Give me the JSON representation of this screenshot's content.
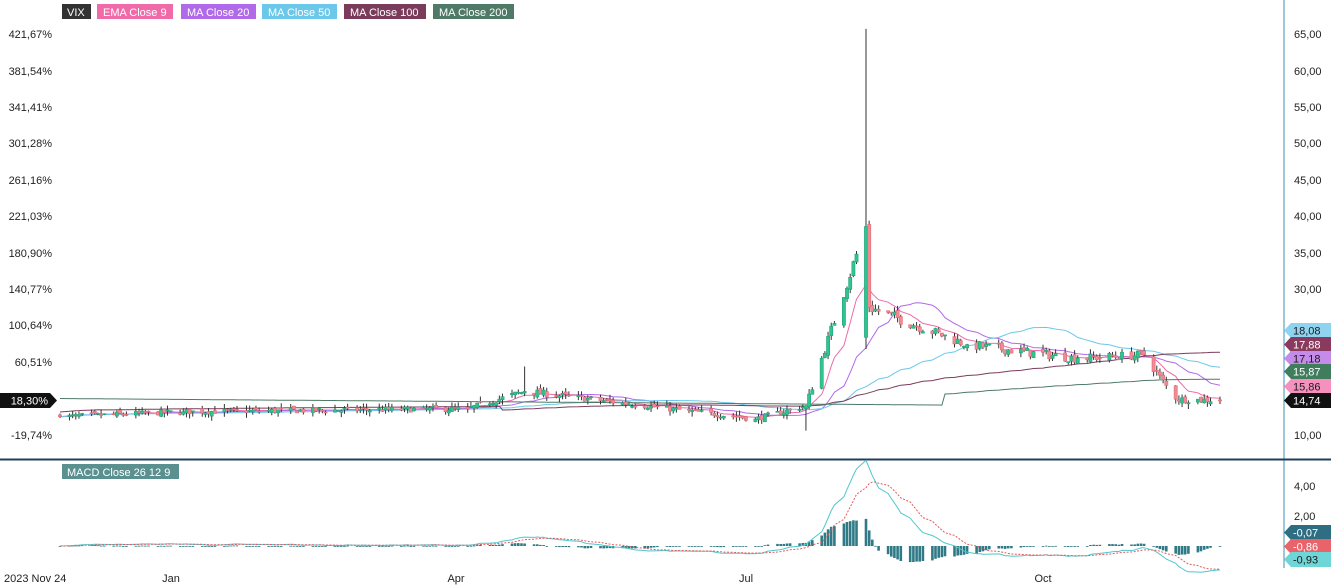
{
  "legend": {
    "main": [
      {
        "label": "VIX",
        "color": "#333333"
      },
      {
        "label": "EMA Close 9",
        "color": "#f06aa8"
      },
      {
        "label": "MA Close 20",
        "color": "#b069e8"
      },
      {
        "label": "MA Close 50",
        "color": "#6cc8ea"
      },
      {
        "label": "MA Close 100",
        "color": "#7b3b5a"
      },
      {
        "label": "MA Close 200",
        "color": "#4f7a67"
      }
    ],
    "macd": {
      "label": "MACD Close 26 12 9",
      "color": "#5a9090"
    }
  },
  "colors": {
    "up": "#26a27b",
    "up_body": "#2fc58f",
    "down": "#e06c75",
    "down_body": "#f08a94",
    "axis": "#3c8fb3",
    "separator": "#1f3f59",
    "macd_hist": "#2f7a86",
    "macd_line": "#4fc7cf",
    "signal_line": "#e05c5c"
  },
  "chart_data": [
    {
      "type": "candlestick",
      "title": "VIX",
      "x_tick_labels": [
        "2023 Nov 24",
        "Jan",
        "Apr",
        "Jul",
        "Oct"
      ],
      "left_axis_ticks": [
        "421,67%",
        "381,54%",
        "341,41%",
        "301,28%",
        "261,16%",
        "221,03%",
        "180,90%",
        "140,77%",
        "100,64%",
        "60,51%",
        "-19,74%"
      ],
      "left_axis_current": "18,30%",
      "right_axis_ticks": [
        "65,00",
        "60,00",
        "55,00",
        "50,00",
        "45,00",
        "40,00",
        "35,00",
        "30,00",
        "10,00"
      ],
      "ylim": [
        8.0,
        67.0
      ],
      "right_axis_badges": [
        {
          "value": 18.08,
          "label": "18,08",
          "color": "#8fd3ee",
          "text": "#1a1a1a"
        },
        {
          "value": 17.88,
          "label": "17,88",
          "color": "#8a3a5e",
          "text": "#ffffff"
        },
        {
          "value": 17.18,
          "label": "17,18",
          "color": "#c48be8",
          "text": "#1a1a1a"
        },
        {
          "value": 15.87,
          "label": "15,87",
          "color": "#3f7d5c",
          "text": "#ffffff"
        },
        {
          "value": 15.86,
          "label": "15,86",
          "color": "#f590bf",
          "text": "#1a1a1a"
        },
        {
          "value": 14.74,
          "label": "14,74",
          "color": "#111111",
          "text": "#ffffff"
        }
      ],
      "ohlc_key_points": [
        {
          "date": "2023-11-24",
          "close": 12.5
        },
        {
          "date": "2024-01-02",
          "close": 13.2
        },
        {
          "date": "2024-04-01",
          "close": 13.6
        },
        {
          "date": "2024-04-19",
          "high": 19.4,
          "close": 16.0
        },
        {
          "date": "2024-07-01",
          "close": 12.2
        },
        {
          "date": "2024-07-17",
          "low": 10.6,
          "close": 14.0
        },
        {
          "date": "2024-08-05",
          "open": 23.4,
          "high": 65.7,
          "low": 21.8,
          "close": 38.6
        },
        {
          "date": "2024-08-06",
          "close": 27.5
        },
        {
          "date": "2024-09-06",
          "high": 22.5,
          "close": 22.4
        },
        {
          "date": "2024-10-11",
          "close": 20.5
        },
        {
          "date": "2024-11-01",
          "close": 21.0
        },
        {
          "date": "2024-11-11",
          "close": 14.9
        },
        {
          "date": "2024-11-25",
          "close": 14.74
        }
      ],
      "last_values": {
        "VIX": 14.74,
        "EMA Close 9": 15.86,
        "MA Close 20": 17.18,
        "MA Close 50": 18.08,
        "MA Close 100": 17.88,
        "MA Close 200": 15.87
      }
    },
    {
      "type": "line+bar",
      "title": "MACD Close 26 12 9",
      "right_axis_ticks": [
        "4,00",
        "2,00"
      ],
      "ylim": [
        -2.6,
        5.0
      ],
      "right_axis_badges": [
        {
          "value": -0.07,
          "label": "-0,07",
          "color": "#2f6e82",
          "text": "#ffffff"
        },
        {
          "value": -0.86,
          "label": "-0,86",
          "color": "#e9646a",
          "text": "#ffffff"
        },
        {
          "value": -0.93,
          "label": "-0,93",
          "color": "#6fd6d8",
          "text": "#1a1a1a"
        }
      ],
      "macd_key_points": [
        {
          "date": "2024-04-19",
          "macd": 1.3
        },
        {
          "date": "2024-08-07",
          "macd": 3.7
        },
        {
          "date": "2024-08-16",
          "signal": 2.8
        },
        {
          "date": "2024-08-23",
          "macd": -1.2
        },
        {
          "date": "2024-10-15",
          "macd": 1.0
        },
        {
          "date": "2024-11-14",
          "macd": -1.8
        }
      ]
    }
  ]
}
